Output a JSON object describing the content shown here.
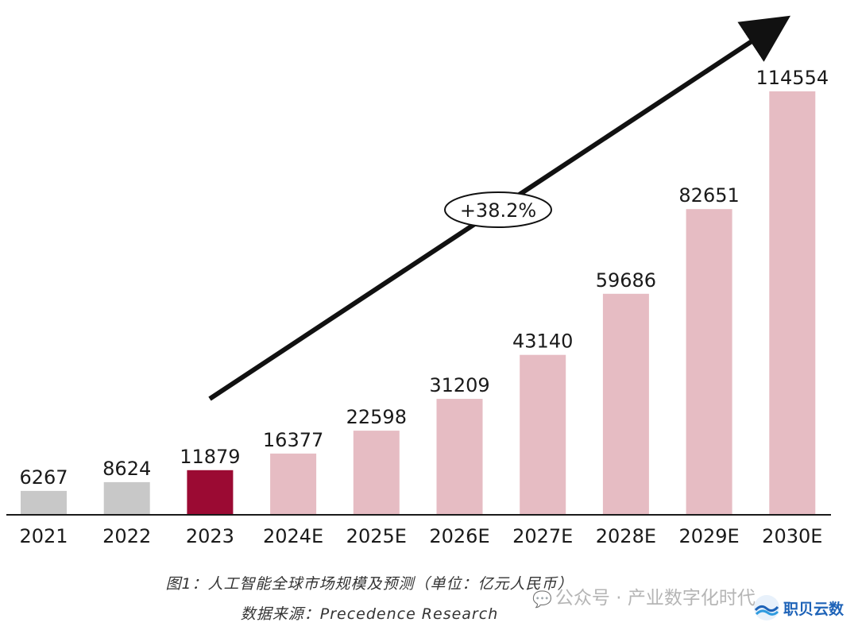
{
  "chart_data": {
    "type": "bar",
    "categories": [
      "2021",
      "2022",
      "2023",
      "2024E",
      "2025E",
      "2026E",
      "2027E",
      "2028E",
      "2029E",
      "2030E"
    ],
    "values": [
      6267,
      8624,
      11879,
      16377,
      22598,
      31209,
      43140,
      59686,
      82651,
      114554
    ],
    "value_labels": [
      "6267",
      "8624",
      "11879",
      "16377",
      "22598",
      "31209",
      "43140",
      "59686",
      "82651",
      "114554"
    ],
    "bar_colors": [
      "#c8c8c8",
      "#c8c8c8",
      "#9b0a33",
      "#e6bcc3",
      "#e6bcc3",
      "#e6bcc3",
      "#e6bcc3",
      "#e6bcc3",
      "#e6bcc3",
      "#e6bcc3"
    ],
    "ylim": [
      0,
      114554
    ],
    "grid": false,
    "annotation": "+38.2%",
    "title": "图1：人工智能全球市场规模及预测（单位：亿元人民币）",
    "source": "数据来源：Precedence Research",
    "xlabel": "",
    "ylabel": ""
  },
  "watermark": {
    "icon": "wechat-icon",
    "text": "公众号 · 产业数字化时代"
  },
  "logo": {
    "text": "职贝云数",
    "color": "#1e63b8"
  },
  "colors": {
    "axis": "#1a1a1a",
    "arrow": "#111111",
    "label": "#1a1a1a"
  }
}
